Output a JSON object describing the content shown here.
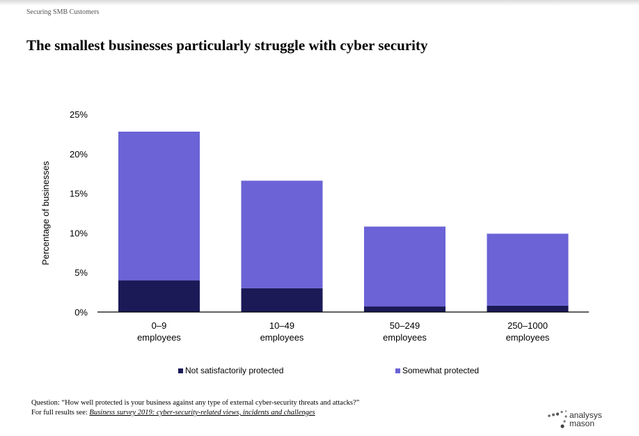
{
  "header": {
    "section_label": "Securing SMB Customers"
  },
  "title": "The smallest businesses particularly struggle with cyber security",
  "chart_data": {
    "type": "bar",
    "stacked": true,
    "categories": [
      [
        "0–9",
        "employees"
      ],
      [
        "10–49",
        "employees"
      ],
      [
        "50–249",
        "employees"
      ],
      [
        "250–1000",
        "employees"
      ]
    ],
    "series": [
      {
        "name": "Not satisfactorily protected",
        "color": "#1b1a57",
        "values": [
          4.0,
          3.0,
          0.7,
          0.8
        ]
      },
      {
        "name": "Somewhat protected",
        "color": "#6b63d6",
        "values": [
          18.8,
          13.6,
          10.1,
          9.1
        ]
      }
    ],
    "ylabel": "Percentage of businesses",
    "ylim": [
      0,
      25
    ],
    "yticks": [
      "0%",
      "5%",
      "10%",
      "15%",
      "20%",
      "25%"
    ],
    "grid": false,
    "legend_position": "bottom"
  },
  "footnote": {
    "question": "Question: “How well protected is your business against any type of external cyber-security threats and attacks?”",
    "results_prefix": "For full results see: ",
    "results_link": "Business survey 2019: cyber-security-related views, incidents and challenges"
  },
  "logo": {
    "line1": "analysys",
    "line2": "mason",
    "icon": "dots-logo-icon"
  }
}
